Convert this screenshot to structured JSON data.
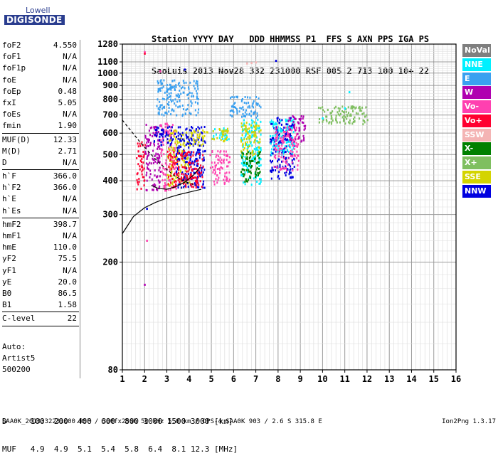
{
  "logo": {
    "top": "Lowell",
    "bottom": "DIGISONDE"
  },
  "header": {
    "line1": "Station YYYY DAY   DDD HHMMSS P1  FFS S AXN PPS IGA PS",
    "line2": "SaoLuis 2013 Nov28 332 231000 RSF 005 2 713 100 10+ 22"
  },
  "params": [
    {
      "label": "foF2",
      "value": "4.550"
    },
    {
      "label": "foF1",
      "value": "N/A"
    },
    {
      "label": "foF1p",
      "value": "N/A"
    },
    {
      "label": "foE",
      "value": "N/A"
    },
    {
      "label": "foEp",
      "value": "0.48"
    },
    {
      "label": "fxI",
      "value": "5.05"
    },
    {
      "label": "foEs",
      "value": "N/A"
    },
    {
      "label": "fmin",
      "value": "1.90",
      "sep": true
    },
    {
      "label": "MUF(D)",
      "value": "12.33"
    },
    {
      "label": "M(D)",
      "value": "2.71"
    },
    {
      "label": "D",
      "value": "N/A",
      "sep": true
    },
    {
      "label": "h`F",
      "value": "366.0"
    },
    {
      "label": "h`F2",
      "value": "366.0"
    },
    {
      "label": "h`E",
      "value": "N/A"
    },
    {
      "label": "h`Es",
      "value": "N/A",
      "sep": true
    },
    {
      "label": "hmF2",
      "value": "398.7"
    },
    {
      "label": "hmF1",
      "value": "N/A"
    },
    {
      "label": "hmE",
      "value": "110.0"
    },
    {
      "label": "yF2",
      "value": "75.5"
    },
    {
      "label": "yF1",
      "value": "N/A"
    },
    {
      "label": "yE",
      "value": "20.0"
    },
    {
      "label": "B0",
      "value": "86.5"
    },
    {
      "label": "B1",
      "value": "1.58",
      "sep": true
    },
    {
      "label": "C-level",
      "value": "22",
      "sep": true
    }
  ],
  "auto": {
    "line1": "Auto:",
    "line2": "Artist5",
    "line3": "500200"
  },
  "legend": [
    {
      "label": "NoVal",
      "bg": "#7f7f7f",
      "fg": "#ffffff"
    },
    {
      "label": "NNE",
      "bg": "#00f0ff",
      "fg": "#ffffff"
    },
    {
      "label": "E",
      "bg": "#3aa0f0",
      "fg": "#ffffff"
    },
    {
      "label": "W",
      "bg": "#b000b0",
      "fg": "#ffffff"
    },
    {
      "label": "Vo-",
      "bg": "#ff40b0",
      "fg": "#ffffff"
    },
    {
      "label": "Vo+",
      "bg": "#ff0030",
      "fg": "#ffffff"
    },
    {
      "label": "SSW",
      "bg": "#f4b4b4",
      "fg": "#ffffff"
    },
    {
      "label": "X-",
      "bg": "#008000",
      "fg": "#ffffff"
    },
    {
      "label": "X+",
      "bg": "#7fbf60",
      "fg": "#ffffff"
    },
    {
      "label": "SSE",
      "bg": "#d4d400",
      "fg": "#ffffff"
    },
    {
      "label": "NNW",
      "bg": "#0000e0",
      "fg": "#ffffff"
    }
  ],
  "bottom": {
    "d_line": "D     100  200  400  600  800 1000 1500 3000 [km]",
    "muf_line": "MUF   4.9  4.9  5.1  5.4  5.8  6.4  8.1 12.3 [MHz]"
  },
  "footer": {
    "left": "SAA0K_2013332231000.RSF / 300fx256h 50 kHz 5.0 km / DPS-4 SAA0K 903 / 2.6 S 315.8 E",
    "right": "Ion2Png 1.3.17"
  },
  "chart_data": {
    "type": "scatter",
    "title": "",
    "xlabel": "",
    "ylabel": "",
    "xlim": [
      1,
      16
    ],
    "ylim": [
      80,
      1280
    ],
    "y_scale": "log",
    "x_ticks": [
      1,
      2,
      3,
      4,
      5,
      6,
      7,
      8,
      9,
      10,
      11,
      12,
      13,
      14,
      15,
      16
    ],
    "y_ticks": [
      80,
      200,
      300,
      400,
      500,
      600,
      700,
      800,
      900,
      1000,
      1100,
      1280
    ],
    "clusters": [
      {
        "x": [
          1.6,
          2.0
        ],
        "y": [
          375,
          560
        ],
        "color": "#ff0030"
      },
      {
        "x": [
          2.0,
          2.7
        ],
        "y": [
          370,
          650
        ],
        "color": "#b000b0"
      },
      {
        "x": [
          2.7,
          3.4
        ],
        "y": [
          370,
          660
        ],
        "color": "#ff40b0"
      },
      {
        "x": [
          2.4,
          3.4
        ],
        "y": [
          540,
          640
        ],
        "color": "#0000e0"
      },
      {
        "x": [
          3.0,
          4.0
        ],
        "y": [
          380,
          620
        ],
        "color": "#d4d400"
      },
      {
        "x": [
          3.4,
          4.7
        ],
        "y": [
          380,
          640
        ],
        "color": "#0000e0"
      },
      {
        "x": [
          3.0,
          4.6
        ],
        "y": [
          380,
          520
        ],
        "color": "#ff0030"
      },
      {
        "x": [
          4.0,
          4.8
        ],
        "y": [
          540,
          620
        ],
        "color": "#d4d400"
      },
      {
        "x": [
          4.9,
          5.8
        ],
        "y": [
          390,
          520
        ],
        "color": "#ff40b0"
      },
      {
        "x": [
          5.0,
          5.8
        ],
        "y": [
          560,
          630
        ],
        "color": "#00f0ff"
      },
      {
        "x": [
          5.0,
          5.8
        ],
        "y": [
          560,
          630
        ],
        "color": "#d4d400"
      },
      {
        "x": [
          6.3,
          7.2
        ],
        "y": [
          390,
          690
        ],
        "color": "#00f0ff"
      },
      {
        "x": [
          6.3,
          7.2
        ],
        "y": [
          500,
          670
        ],
        "color": "#d4d400"
      },
      {
        "x": [
          6.3,
          7.2
        ],
        "y": [
          400,
          520
        ],
        "color": "#008000"
      },
      {
        "x": [
          7.6,
          8.7
        ],
        "y": [
          410,
          690
        ],
        "color": "#0000e0"
      },
      {
        "x": [
          7.6,
          8.7
        ],
        "y": [
          500,
          680
        ],
        "color": "#00f0ff"
      },
      {
        "x": [
          7.8,
          8.9
        ],
        "y": [
          440,
          640
        ],
        "color": "#ff40b0"
      },
      {
        "x": [
          8.4,
          9.2
        ],
        "y": [
          560,
          700
        ],
        "color": "#b000b0"
      },
      {
        "x": [
          2.5,
          4.4
        ],
        "y": [
          700,
          950
        ],
        "color": "#3aa0f0"
      },
      {
        "x": [
          5.8,
          7.2
        ],
        "y": [
          690,
          830
        ],
        "color": "#3aa0f0"
      },
      {
        "x": [
          9.8,
          12.0
        ],
        "y": [
          650,
          760
        ],
        "color": "#7fbf60"
      }
    ],
    "points": [
      {
        "x": 2.0,
        "y": 1195,
        "color": "#ff40b0"
      },
      {
        "x": 2.0,
        "y": 1180,
        "color": "#ff0030"
      },
      {
        "x": 2.1,
        "y": 240,
        "color": "#ff40b0"
      },
      {
        "x": 2.0,
        "y": 165,
        "color": "#b000b0"
      },
      {
        "x": 2.1,
        "y": 315,
        "color": "#0000e0"
      },
      {
        "x": 2.7,
        "y": 1015,
        "color": "#ff40b0"
      },
      {
        "x": 3.8,
        "y": 1030,
        "color": "#0000e0"
      },
      {
        "x": 6.6,
        "y": 1085,
        "color": "#f4b4b4"
      },
      {
        "x": 6.8,
        "y": 1090,
        "color": "#f4b4b4"
      },
      {
        "x": 7.0,
        "y": 1095,
        "color": "#f4b4b4"
      },
      {
        "x": 7.9,
        "y": 1110,
        "color": "#0000e0"
      },
      {
        "x": 11.2,
        "y": 850,
        "color": "#00f0ff"
      },
      {
        "x": 10.0,
        "y": 680,
        "color": "#00f0ff"
      },
      {
        "x": 11.0,
        "y": 740,
        "color": "#00f0ff"
      },
      {
        "x": 11.9,
        "y": 690,
        "color": "#7fbf60"
      }
    ],
    "curves": [
      {
        "name": "trace_dashed",
        "style": "dashed",
        "x": [
          1,
          1.4,
          1.8,
          2.2,
          2.6,
          3.0,
          3.3,
          3.6,
          4.0,
          4.3
        ],
        "y": [
          670,
          610,
          555,
          510,
          470,
          440,
          420,
          405,
          392,
          385
        ]
      },
      {
        "name": "profile_lower",
        "style": "solid",
        "x": [
          1,
          1.5,
          2.0,
          2.5,
          3.0,
          3.5,
          4.0,
          4.3,
          4.55
        ],
        "y": [
          255,
          295,
          318,
          333,
          345,
          355,
          363,
          368,
          372
        ]
      },
      {
        "name": "profile_upper",
        "style": "solid",
        "x": [
          2.3,
          2.6,
          3.0,
          3.4,
          3.8,
          4.2,
          4.5
        ],
        "y": [
          385,
          375,
          372,
          380,
          395,
          420,
          450
        ]
      }
    ]
  }
}
